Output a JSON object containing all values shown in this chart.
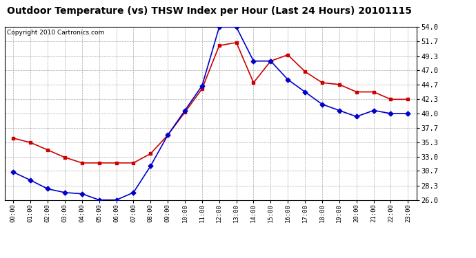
{
  "title": "Outdoor Temperature (vs) THSW Index per Hour (Last 24 Hours) 20101115",
  "copyright": "Copyright 2010 Cartronics.com",
  "hours": [
    "00:00",
    "01:00",
    "02:00",
    "03:00",
    "04:00",
    "05:00",
    "06:00",
    "07:00",
    "08:00",
    "09:00",
    "10:00",
    "11:00",
    "12:00",
    "13:00",
    "14:00",
    "15:00",
    "16:00",
    "17:00",
    "18:00",
    "19:00",
    "20:00",
    "21:00",
    "22:00",
    "23:00"
  ],
  "outdoor_temp": [
    36.0,
    35.3,
    34.1,
    32.9,
    32.0,
    32.0,
    32.0,
    32.0,
    33.5,
    36.5,
    40.2,
    44.0,
    51.0,
    51.5,
    45.0,
    48.5,
    49.5,
    46.8,
    45.0,
    44.7,
    43.5,
    43.5,
    42.3,
    42.3
  ],
  "thsw_index": [
    30.5,
    29.2,
    27.8,
    27.2,
    27.0,
    26.0,
    26.0,
    27.2,
    31.5,
    36.5,
    40.5,
    44.5,
    54.0,
    54.0,
    48.5,
    48.5,
    45.5,
    43.5,
    41.5,
    40.5,
    39.5,
    40.5,
    40.0,
    40.0
  ],
  "temp_color": "#cc0000",
  "thsw_color": "#0000cc",
  "yticks": [
    26.0,
    28.3,
    30.7,
    33.0,
    35.3,
    37.7,
    40.0,
    42.3,
    44.7,
    47.0,
    49.3,
    51.7,
    54.0
  ],
  "ymin": 26.0,
  "ymax": 54.0,
  "bg_color": "#ffffff",
  "grid_color": "#aaaaaa",
  "title_fontsize": 10,
  "copyright_fontsize": 6.5
}
